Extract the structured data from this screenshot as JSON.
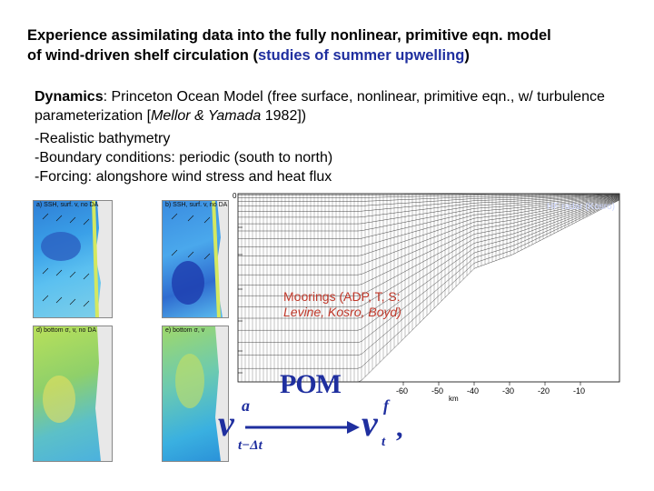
{
  "title": {
    "line1": "Experience assimilating data into the fully nonlinear, primitive eqn. model",
    "line2_pre": "of wind-driven shelf circulation (",
    "line2_hl": "studies of summer upwelling",
    "line2_post": ")"
  },
  "dynamics": {
    "label": "Dynamics",
    "text": ": Princeton Ocean Model (free surface, nonlinear, primitive eqn., w/ turbulence parameterization [",
    "cite_names": "Mellor & Yamada",
    "cite_year": " 1982])"
  },
  "bullets": [
    "-Realistic bathymetry",
    "-Boundary conditions: periodic (south to north)",
    "-Forcing: alongshore wind stress and heat flux"
  ],
  "panels": {
    "a": "a) SSH, surf. v, no DA",
    "b": "b) SSH, surf. v, no DA",
    "d": "d) bottom σ, v, no DA",
    "e": "e) bottom σ, v"
  },
  "section": {
    "xlabel": "km",
    "ticks": [
      "-60",
      "-50",
      "-40",
      "-30",
      "-20",
      "-10"
    ],
    "top_label": "0",
    "moorings_label": "Moorings (ADP, T, S:",
    "moorings_names": "Levine, Kosro, Boyd)",
    "overlay_label": "HF radar (Kosro)"
  },
  "equation": {
    "pom": "POM",
    "v": "v",
    "sup_a": "a",
    "sub_left": "t−Δt",
    "sup_f": "f",
    "sub_right": "t",
    "comma": ","
  },
  "colors": {
    "title_highlight": "#1f2f9f",
    "annotation_red": "#c0392b",
    "pom_blue": "#1f2f9f"
  }
}
